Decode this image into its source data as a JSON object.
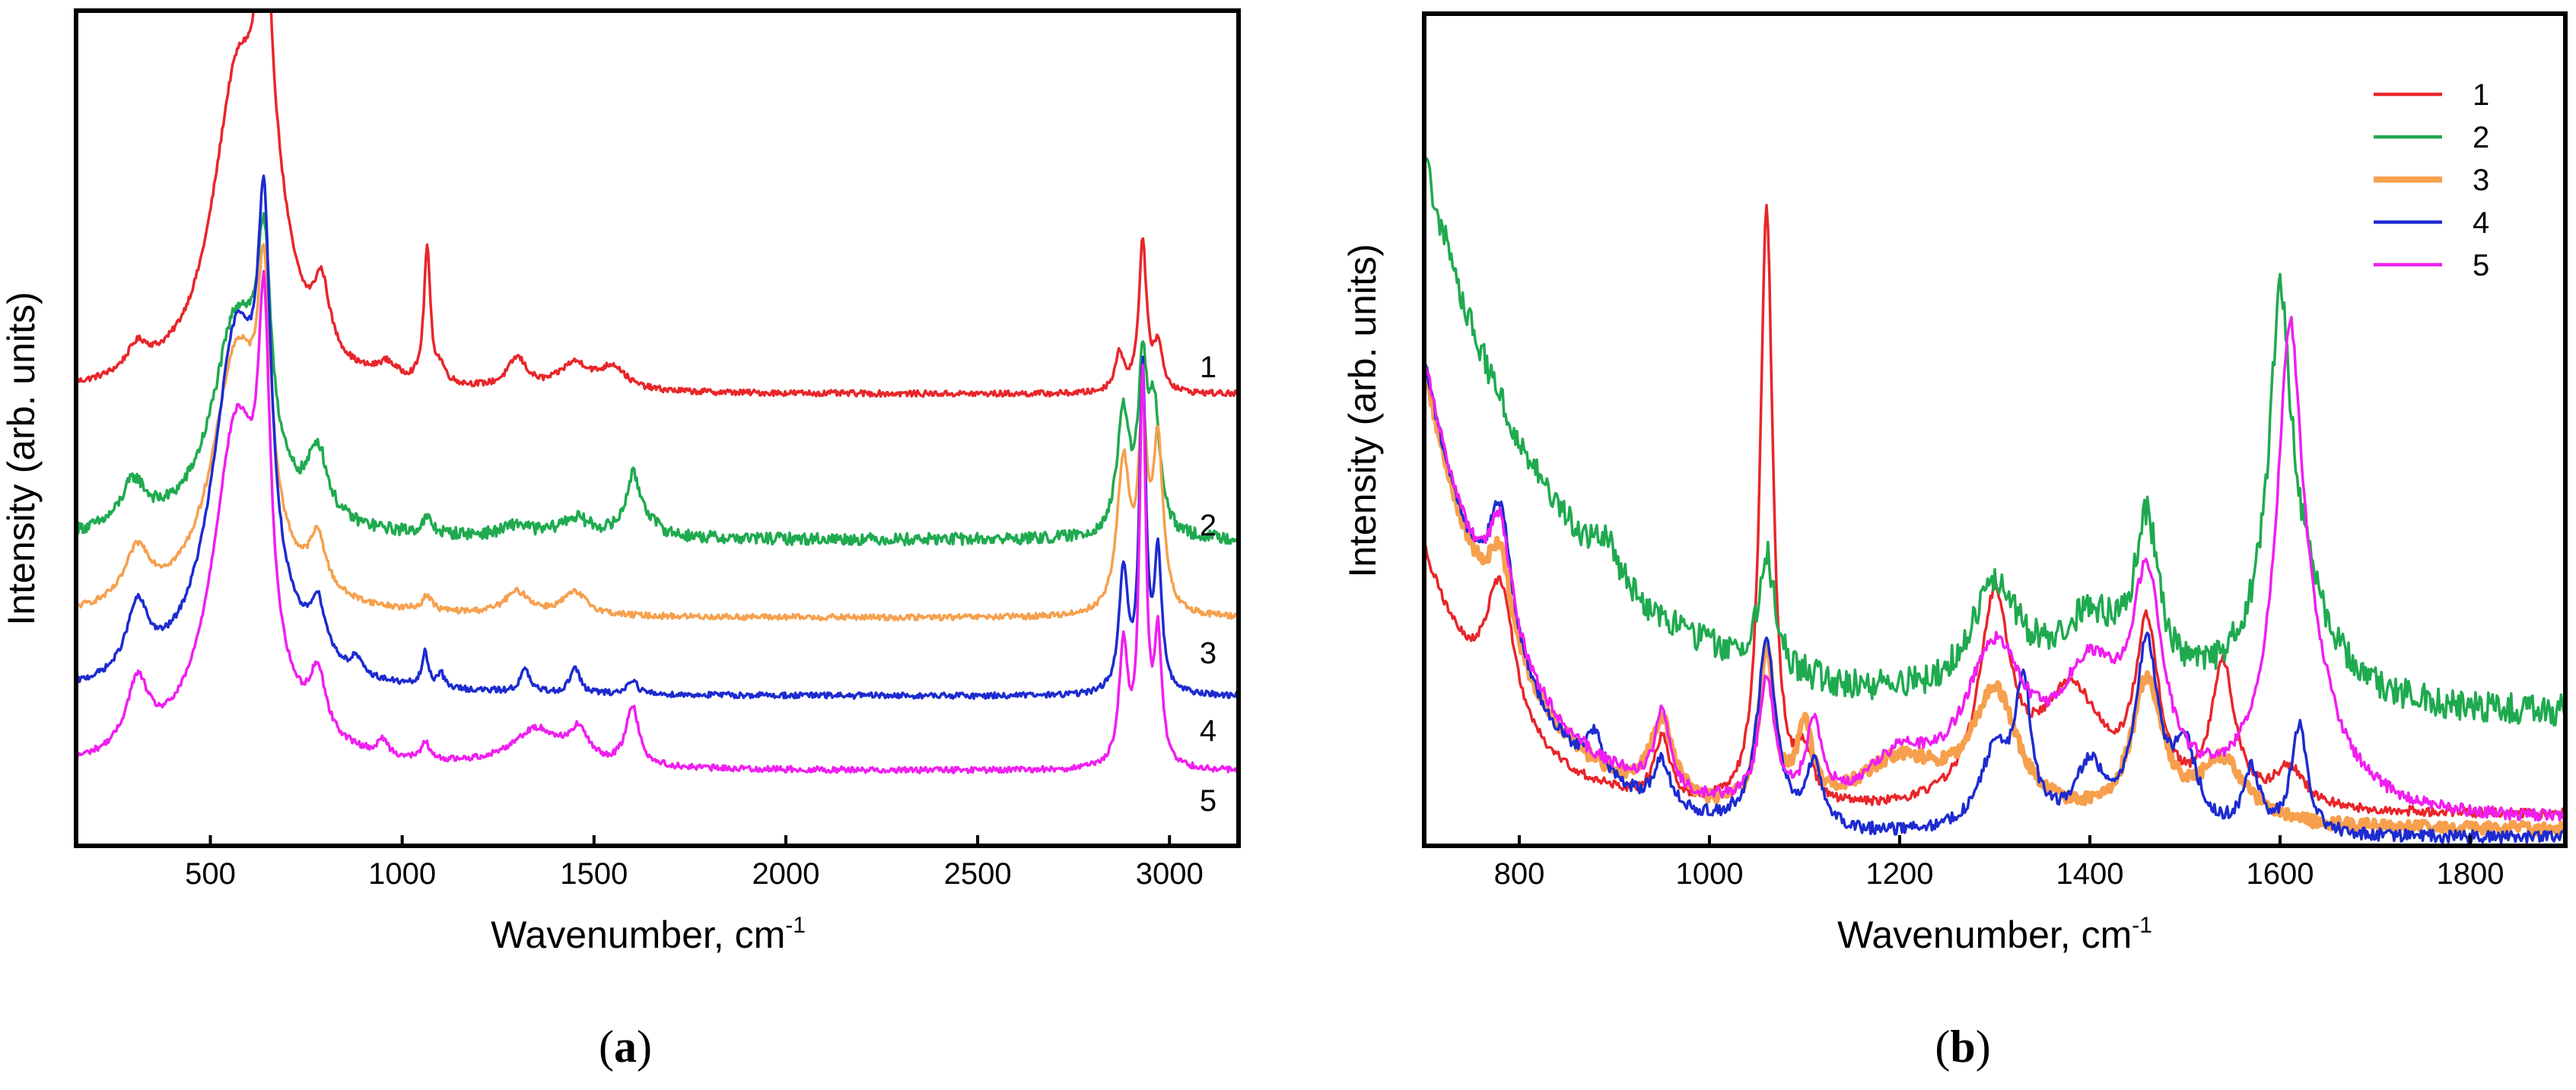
{
  "chart_data": [
    {
      "type": "line",
      "panel_label": "a",
      "xlabel": "Wavenumber, cm",
      "xlabel_sup": "-1",
      "ylabel": "Intensity (arb. units)",
      "xlim": [
        150,
        3180
      ],
      "ylim": [
        0,
        1
      ],
      "x_ticks": [
        "500",
        "1000",
        "1500",
        "2000",
        "2500",
        "3000"
      ],
      "x_tick_values": [
        500,
        1000,
        1500,
        2000,
        2500,
        3000
      ],
      "series_labels": [
        "1",
        "2",
        "3",
        "4",
        "5"
      ],
      "series": [
        {
          "name": "1",
          "color": "#e8262a",
          "baseline": 0.505,
          "noise": 0.004,
          "peaks": [
            [
              310,
              0.035,
              35
            ],
            [
              570,
              0.39,
              80
            ],
            [
              640,
              0.38,
              18
            ],
            [
              660,
              0.15,
              60
            ],
            [
              790,
              0.09,
              25
            ],
            [
              960,
              0.02,
              30
            ],
            [
              1065,
              0.18,
              10
            ],
            [
              1100,
              0.02,
              15
            ],
            [
              1300,
              0.04,
              30
            ],
            [
              1450,
              0.035,
              50
            ],
            [
              1550,
              0.03,
              40
            ],
            [
              2870,
              0.05,
              15
            ],
            [
              2930,
              0.2,
              12
            ],
            [
              2970,
              0.06,
              15
            ]
          ]
        },
        {
          "name": "2",
          "color": "#1faa4f",
          "baseline": 0.31,
          "noise": 0.008,
          "peaks": [
            [
              300,
              0.06,
              40
            ],
            [
              570,
              0.29,
              80
            ],
            [
              640,
              0.26,
              22
            ],
            [
              780,
              0.09,
              30
            ],
            [
              1065,
              0.02,
              15
            ],
            [
              1300,
              0.015,
              40
            ],
            [
              1450,
              0.025,
              50
            ],
            [
              1600,
              0.06,
              20
            ],
            [
              1620,
              0.03,
              40
            ],
            [
              2880,
              0.16,
              20
            ],
            [
              2930,
              0.2,
              14
            ],
            [
              2960,
              0.16,
              18
            ]
          ]
        },
        {
          "name": "3",
          "color": "#f6a04d",
          "baseline": 0.205,
          "noise": 0.004,
          "peaks": [
            [
              310,
              0.07,
              40
            ],
            [
              570,
              0.35,
              80
            ],
            [
              640,
              0.3,
              20
            ],
            [
              780,
              0.07,
              25
            ],
            [
              1065,
              0.02,
              15
            ],
            [
              1300,
              0.03,
              40
            ],
            [
              1450,
              0.03,
              40
            ],
            [
              2880,
              0.2,
              20
            ],
            [
              2930,
              0.24,
              14
            ],
            [
              2970,
              0.22,
              16
            ]
          ]
        },
        {
          "name": "4",
          "color": "#1d2bd0",
          "baseline": 0.1,
          "noise": 0.004,
          "peaks": [
            [
              310,
              0.09,
              35
            ],
            [
              570,
              0.48,
              80
            ],
            [
              640,
              0.42,
              20
            ],
            [
              780,
              0.07,
              25
            ],
            [
              880,
              0.02,
              15
            ],
            [
              1060,
              0.045,
              10
            ],
            [
              1100,
              0.02,
              10
            ],
            [
              1320,
              0.03,
              15
            ],
            [
              1450,
              0.035,
              15
            ],
            [
              1600,
              0.02,
              15
            ],
            [
              2880,
              0.16,
              14
            ],
            [
              2930,
              0.43,
              10
            ],
            [
              2970,
              0.18,
              12
            ]
          ]
        },
        {
          "name": "5",
          "color": "#f01ef0",
          "baseline": 0.0,
          "noise": 0.004,
          "peaks": [
            [
              310,
              0.09,
              35
            ],
            [
              570,
              0.46,
              80
            ],
            [
              640,
              0.4,
              18
            ],
            [
              780,
              0.08,
              25
            ],
            [
              950,
              0.02,
              15
            ],
            [
              1060,
              0.025,
              10
            ],
            [
              1350,
              0.05,
              80
            ],
            [
              1460,
              0.04,
              30
            ],
            [
              1600,
              0.08,
              20
            ],
            [
              2880,
              0.16,
              14
            ],
            [
              2930,
              0.52,
              10
            ],
            [
              2970,
              0.17,
              12
            ]
          ]
        }
      ]
    },
    {
      "type": "line",
      "panel_label": "b",
      "xlabel": "Wavenumber, cm",
      "xlabel_sup": "-1",
      "ylabel": "Intensity (arb. units)",
      "xlim": [
        700,
        1900
      ],
      "ylim": [
        0,
        1
      ],
      "x_ticks": [
        "800",
        "1000",
        "1200",
        "1400",
        "1600",
        "1800"
      ],
      "x_tick_values": [
        800,
        1000,
        1200,
        1400,
        1600,
        1800
      ],
      "legend": {
        "position": "top-right",
        "entries": [
          "1",
          "2",
          "3",
          "4",
          "5"
        ]
      },
      "series": [
        {
          "name": "1",
          "color": "#e8262a",
          "width": 3.5,
          "baseline": 0.02,
          "noise": 0.006,
          "decay": [
            0.34,
            80
          ],
          "peaks": [
            [
              780,
              0.18,
              18
            ],
            [
              950,
              0.08,
              10
            ],
            [
              1060,
              0.78,
              8
            ],
            [
              1100,
              0.06,
              10
            ],
            [
              1300,
              0.26,
              20
            ],
            [
              1380,
              0.15,
              40
            ],
            [
              1460,
              0.22,
              15
            ],
            [
              1540,
              0.18,
              15
            ],
            [
              1610,
              0.05,
              20
            ]
          ]
        },
        {
          "name": "2",
          "color": "#1faa4f",
          "width": 3.5,
          "baseline": 0.15,
          "noise": 0.02,
          "decay": [
            0.72,
            140
          ],
          "peaks": [
            [
              890,
              0.05,
              15
            ],
            [
              1060,
              0.15,
              10
            ],
            [
              1300,
              0.14,
              30
            ],
            [
              1400,
              0.1,
              50
            ],
            [
              1460,
              0.2,
              15
            ],
            [
              1600,
              0.36,
              12
            ],
            [
              1610,
              0.2,
              40
            ]
          ]
        },
        {
          "name": "3",
          "color": "#f6a04d",
          "width": 7,
          "baseline": 0.0,
          "noise": 0.008,
          "decay": [
            0.6,
            90
          ],
          "peaks": [
            [
              780,
              0.12,
              15
            ],
            [
              950,
              0.1,
              15
            ],
            [
              1060,
              0.2,
              10
            ],
            [
              1100,
              0.1,
              10
            ],
            [
              1200,
              0.08,
              60
            ],
            [
              1300,
              0.16,
              30
            ],
            [
              1460,
              0.18,
              20
            ],
            [
              1540,
              0.08,
              30
            ]
          ]
        },
        {
          "name": "4",
          "color": "#1d2bd0",
          "width": 3.5,
          "baseline": -0.01,
          "noise": 0.008,
          "decay": [
            0.62,
            90
          ],
          "peaks": [
            [
              780,
              0.18,
              15
            ],
            [
              880,
              0.05,
              10
            ],
            [
              950,
              0.06,
              10
            ],
            [
              1060,
              0.24,
              12
            ],
            [
              1110,
              0.08,
              10
            ],
            [
              1300,
              0.1,
              20
            ],
            [
              1330,
              0.18,
              10
            ],
            [
              1400,
              0.08,
              20
            ],
            [
              1460,
              0.24,
              15
            ],
            [
              1500,
              0.1,
              15
            ],
            [
              1570,
              0.08,
              10
            ],
            [
              1620,
              0.14,
              10
            ]
          ]
        },
        {
          "name": "5",
          "color": "#f01ef0",
          "width": 3.5,
          "baseline": 0.01,
          "noise": 0.008,
          "decay": [
            0.6,
            90
          ],
          "peaks": [
            [
              780,
              0.15,
              15
            ],
            [
              950,
              0.1,
              10
            ],
            [
              1060,
              0.16,
              10
            ],
            [
              1110,
              0.1,
              10
            ],
            [
              1200,
              0.06,
              40
            ],
            [
              1300,
              0.2,
              40
            ],
            [
              1400,
              0.16,
              40
            ],
            [
              1460,
              0.26,
              20
            ],
            [
              1610,
              0.45,
              15
            ],
            [
              1620,
              0.2,
              40
            ]
          ]
        }
      ]
    }
  ]
}
